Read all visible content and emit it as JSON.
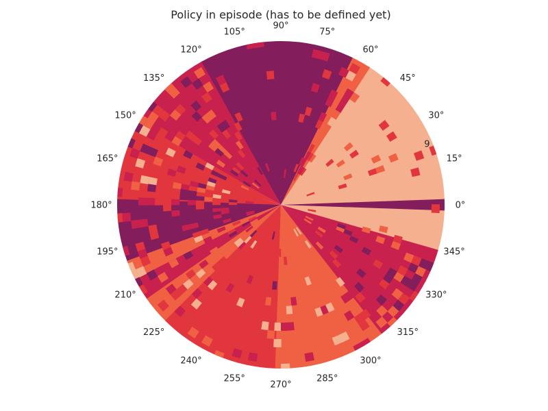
{
  "chart_data": {
    "type": "heatmap",
    "projection": "polar",
    "title": "Policy in episode (has to be defined yet)",
    "xlabel": "",
    "ylabel": "",
    "grid": false,
    "legend": "none",
    "theta_tick_labels": [
      "0°",
      "15°",
      "30°",
      "45°",
      "60°",
      "75°",
      "90°",
      "105°",
      "120°",
      "135°",
      "150°",
      "165°",
      "180°",
      "195°",
      "210°",
      "225°",
      "240°",
      "255°",
      "270°",
      "285°",
      "300°",
      "315°",
      "330°",
      "345°"
    ],
    "theta_ticks_deg": [
      0,
      15,
      30,
      45,
      60,
      75,
      90,
      105,
      120,
      135,
      150,
      165,
      180,
      195,
      210,
      225,
      240,
      255,
      270,
      285,
      300,
      315,
      330,
      345
    ],
    "radial_tick_labels": [
      "9"
    ],
    "radial_tick_angle_deg": 22.5,
    "palette": {
      "0": "#831d5b",
      "1": "#c9214e",
      "2": "#e2363f",
      "3": "#f06043",
      "4": "#f5b08f"
    },
    "policy_by_angle": [
      {
        "theta_start": 0,
        "theta_end": 2,
        "action": 0
      },
      {
        "theta_start": 2,
        "theta_end": 57,
        "action": 4
      },
      {
        "theta_start": 57,
        "theta_end": 64,
        "action": 3
      },
      {
        "theta_start": 64,
        "theta_end": 119,
        "action": 0
      },
      {
        "theta_start": 119,
        "theta_end": 150,
        "action": 1
      },
      {
        "theta_start": 150,
        "theta_end": 162,
        "action": 2
      },
      {
        "theta_start": 162,
        "theta_end": 178,
        "action": 2
      },
      {
        "theta_start": 178,
        "theta_end": 200,
        "action": 0
      },
      {
        "theta_start": 200,
        "theta_end": 207,
        "action": 3
      },
      {
        "theta_start": 207,
        "theta_end": 215,
        "action": 1
      },
      {
        "theta_start": 215,
        "theta_end": 225,
        "action": 3
      },
      {
        "theta_start": 225,
        "theta_end": 268,
        "action": 2
      },
      {
        "theta_start": 268,
        "theta_end": 300,
        "action": 3
      },
      {
        "theta_start": 300,
        "theta_end": 308,
        "action": 3
      },
      {
        "theta_start": 308,
        "theta_end": 322,
        "action": 1
      },
      {
        "theta_start": 322,
        "theta_end": 332,
        "action": 1
      },
      {
        "theta_start": 332,
        "theta_end": 344,
        "action": 1
      },
      {
        "theta_start": 344,
        "theta_end": 358,
        "action": 4
      },
      {
        "theta_start": 358,
        "theta_end": 360,
        "action": 0
      }
    ]
  }
}
